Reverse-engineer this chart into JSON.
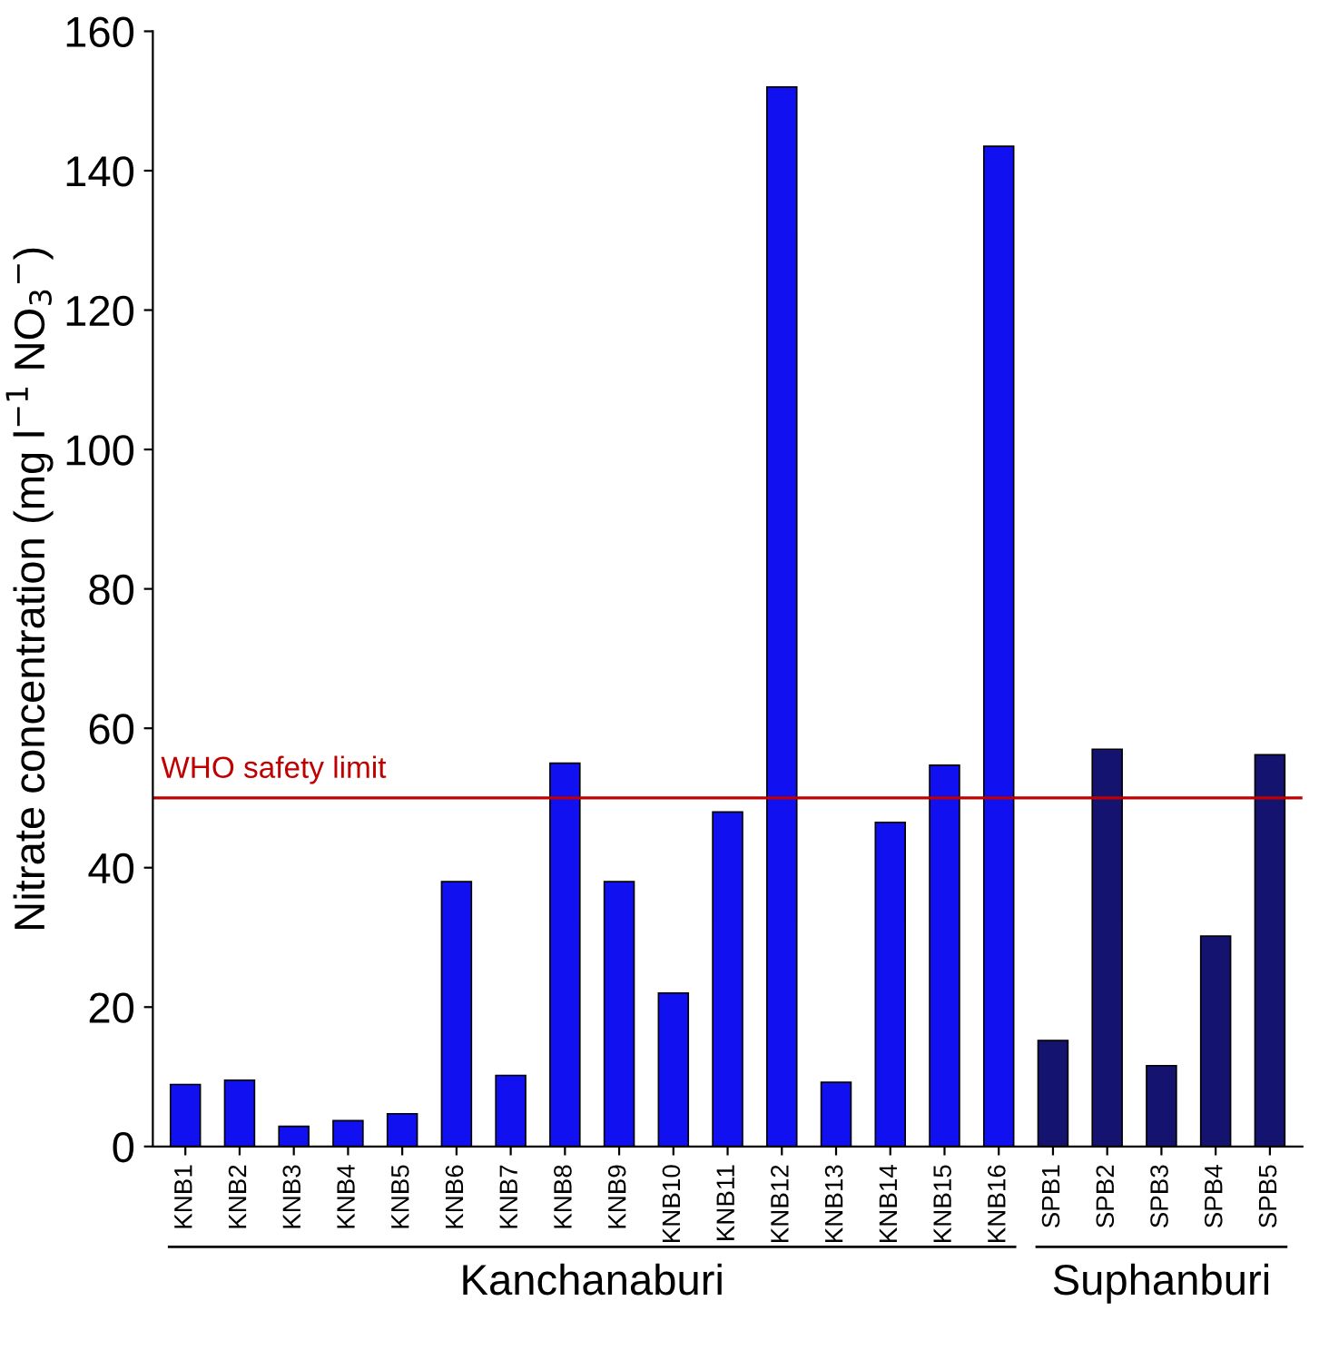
{
  "chart_data": {
    "type": "bar",
    "ylabel": "Nitrate concentration (mg l$^{−1}$ NO$_{3}$$^{−}$)",
    "categories": [
      "KNB1",
      "KNB2",
      "KNB3",
      "KNB4",
      "KNB5",
      "KNB6",
      "KNB7",
      "KNB8",
      "KNB9",
      "KNB10",
      "KNB11",
      "KNB12",
      "KNB13",
      "KNB14",
      "KNB15",
      "KNB16",
      "SPB1",
      "SPB2",
      "SPB3",
      "SPB4",
      "SPB5"
    ],
    "values": [
      8.9,
      9.5,
      2.9,
      3.7,
      4.7,
      38,
      10.2,
      55,
      38,
      22,
      48,
      152,
      9.2,
      46.5,
      54.7,
      143.5,
      15.2,
      57,
      11.6,
      30.2,
      56.2
    ],
    "colors": [
      "#1010f0",
      "#1010f0",
      "#1010f0",
      "#1010f0",
      "#1010f0",
      "#1010f0",
      "#1010f0",
      "#1010f0",
      "#1010f0",
      "#1010f0",
      "#1010f0",
      "#1010f0",
      "#1010f0",
      "#1010f0",
      "#1010f0",
      "#1010f0",
      "#141470",
      "#141470",
      "#141470",
      "#141470",
      "#141470"
    ],
    "ylim": [
      0,
      160
    ],
    "yticks": [
      0,
      20,
      40,
      60,
      80,
      100,
      120,
      140,
      160
    ],
    "ref_lines": [
      {
        "axis": "y",
        "value": 50,
        "label": "WHO safety limit",
        "color": "#c00000"
      }
    ],
    "annotations": [
      "Kanchanaburi",
      "Suphanburi"
    ],
    "grid": false
  }
}
